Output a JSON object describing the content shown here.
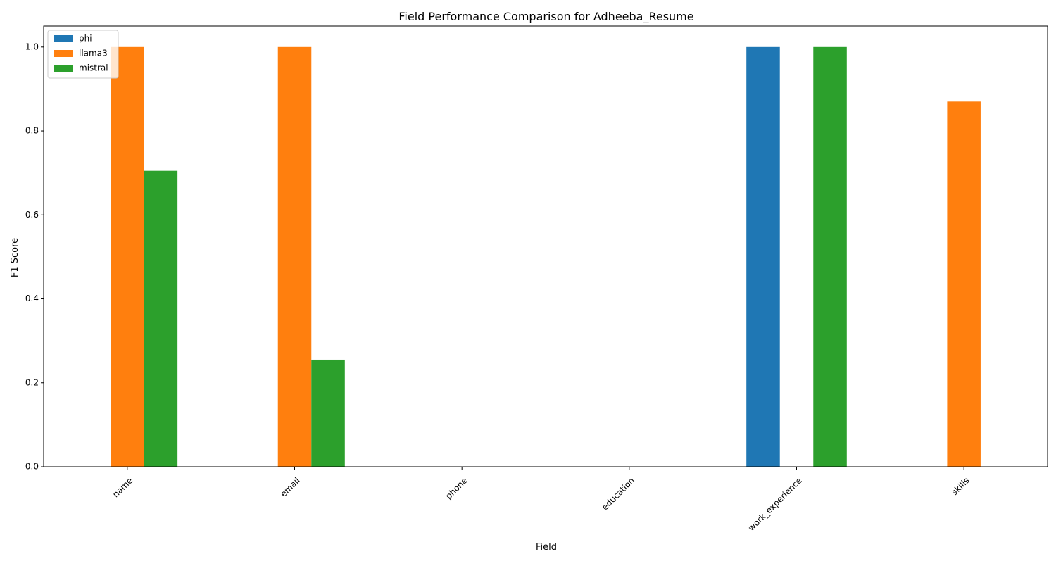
{
  "chart_data": {
    "type": "bar",
    "title": "Field Performance Comparison for Adheeba_Resume",
    "xlabel": "Field",
    "ylabel": "F1 Score",
    "ylim": [
      0,
      1.05
    ],
    "yticks": [
      0.0,
      0.2,
      0.4,
      0.6,
      0.8,
      1.0
    ],
    "ytick_labels": [
      "0.0",
      "0.2",
      "0.4",
      "0.6",
      "0.8",
      "1.0"
    ],
    "categories": [
      "name",
      "email",
      "phone",
      "education",
      "work_experience",
      "skills"
    ],
    "series": [
      {
        "name": "phi",
        "color": "#1f77b4",
        "values": [
          0,
          0,
          0,
          0,
          1.0,
          0
        ]
      },
      {
        "name": "llama3",
        "color": "#ff7f0e",
        "values": [
          1.0,
          1.0,
          0,
          0,
          0,
          0.87
        ]
      },
      {
        "name": "mistral",
        "color": "#2ca02c",
        "values": [
          0.705,
          0.255,
          0,
          0,
          1.0,
          0
        ]
      }
    ],
    "legend_position": "top-left",
    "grid": false
  }
}
